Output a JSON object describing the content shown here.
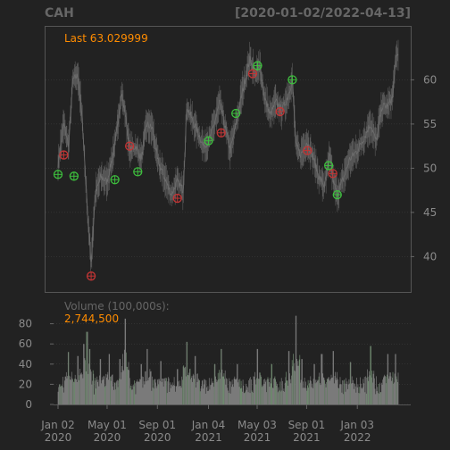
{
  "header": {
    "symbol": "CAH",
    "date_range": "[2020-01-02/2022-04-13]"
  },
  "colors": {
    "background": "#222222",
    "grid": "#444444",
    "text_dim": "#666666",
    "axis_text": "#8a8a8a",
    "price": "#777777",
    "last_label": "#FF8C00",
    "volume_label": "#666666",
    "volume_value": "#FF8C00",
    "marker_buy": "#3DBE3D",
    "marker_sell": "#C23535"
  },
  "chart_data": [
    {
      "type": "line",
      "title": "CAH",
      "subtitle": "[2020-01-02/2022-04-13]",
      "last_label": "Last 63.029999",
      "ylim": [
        36,
        66
      ],
      "y_ticks": [
        40,
        45,
        50,
        55,
        60
      ],
      "x_ticks": [
        {
          "date": "2020-01-02",
          "line1": "Jan 02",
          "line2": "2020"
        },
        {
          "date": "2020-05-01",
          "line1": "May 01",
          "line2": "2020"
        },
        {
          "date": "2020-09-01",
          "line1": "Sep 01",
          "line2": "2020"
        },
        {
          "date": "2021-01-04",
          "line1": "Jan 04",
          "line2": "2021"
        },
        {
          "date": "2021-05-03",
          "line1": "May 03",
          "line2": "2021"
        },
        {
          "date": "2021-09-01",
          "line1": "Sep 01",
          "line2": "2021"
        },
        {
          "date": "2022-01-03",
          "line1": "Jan 03",
          "line2": "2022"
        }
      ],
      "price_anchors": [
        [
          "2020-01-02",
          50.5
        ],
        [
          "2020-01-16",
          55.0
        ],
        [
          "2020-01-28",
          52.5
        ],
        [
          "2020-02-07",
          60.0
        ],
        [
          "2020-02-20",
          60.5
        ],
        [
          "2020-03-02",
          55.0
        ],
        [
          "2020-03-16",
          43.5
        ],
        [
          "2020-03-23",
          39.5
        ],
        [
          "2020-04-02",
          47.0
        ],
        [
          "2020-04-15",
          49.0
        ],
        [
          "2020-05-01",
          48.5
        ],
        [
          "2020-05-20",
          52.5
        ],
        [
          "2020-06-05",
          58.5
        ],
        [
          "2020-06-15",
          56.0
        ],
        [
          "2020-06-25",
          52.0
        ],
        [
          "2020-07-10",
          52.5
        ],
        [
          "2020-07-24",
          51.0
        ],
        [
          "2020-08-05",
          55.0
        ],
        [
          "2020-08-20",
          54.5
        ],
        [
          "2020-09-01",
          51.0
        ],
        [
          "2020-09-18",
          49.0
        ],
        [
          "2020-10-05",
          47.0
        ],
        [
          "2020-10-20",
          48.5
        ],
        [
          "2020-11-03",
          47.5
        ],
        [
          "2020-11-12",
          57.0
        ],
        [
          "2020-11-25",
          55.5
        ],
        [
          "2020-12-10",
          54.0
        ],
        [
          "2020-12-22",
          52.5
        ],
        [
          "2021-01-04",
          53.0
        ],
        [
          "2021-01-15",
          54.5
        ],
        [
          "2021-02-01",
          57.5
        ],
        [
          "2021-02-12",
          55.0
        ],
        [
          "2021-02-26",
          52.0
        ],
        [
          "2021-03-10",
          54.5
        ],
        [
          "2021-03-25",
          58.0
        ],
        [
          "2021-04-08",
          61.0
        ],
        [
          "2021-04-16",
          62.5
        ],
        [
          "2021-04-28",
          60.5
        ],
        [
          "2021-05-10",
          61.5
        ],
        [
          "2021-05-21",
          58.0
        ],
        [
          "2021-06-04",
          56.0
        ],
        [
          "2021-06-18",
          57.5
        ],
        [
          "2021-07-02",
          56.5
        ],
        [
          "2021-07-16",
          58.0
        ],
        [
          "2021-07-28",
          60.0
        ],
        [
          "2021-08-06",
          52.5
        ],
        [
          "2021-08-18",
          51.5
        ],
        [
          "2021-09-01",
          53.0
        ],
        [
          "2021-09-15",
          51.5
        ],
        [
          "2021-10-01",
          49.0
        ],
        [
          "2021-10-15",
          48.0
        ],
        [
          "2021-10-28",
          51.5
        ],
        [
          "2021-11-05",
          48.5
        ],
        [
          "2021-11-15",
          47.0
        ],
        [
          "2021-12-01",
          49.0
        ],
        [
          "2021-12-15",
          51.0
        ],
        [
          "2022-01-03",
          52.0
        ],
        [
          "2022-01-20",
          53.5
        ],
        [
          "2022-02-04",
          55.0
        ],
        [
          "2022-02-18",
          53.0
        ],
        [
          "2022-03-04",
          57.0
        ],
        [
          "2022-03-18",
          57.0
        ],
        [
          "2022-03-30",
          58.0
        ],
        [
          "2022-04-06",
          62.0
        ],
        [
          "2022-04-13",
          63.03
        ]
      ],
      "markers": [
        {
          "date": "2020-01-02",
          "value": 49.3,
          "kind": "buy"
        },
        {
          "date": "2020-01-16",
          "value": 51.5,
          "kind": "sell"
        },
        {
          "date": "2020-02-10",
          "value": 49.1,
          "kind": "buy"
        },
        {
          "date": "2020-03-23",
          "value": 37.8,
          "kind": "sell"
        },
        {
          "date": "2020-05-20",
          "value": 48.7,
          "kind": "buy"
        },
        {
          "date": "2020-06-25",
          "value": 52.5,
          "kind": "sell"
        },
        {
          "date": "2020-07-15",
          "value": 49.6,
          "kind": "buy"
        },
        {
          "date": "2020-10-20",
          "value": 46.6,
          "kind": "sell"
        },
        {
          "date": "2021-01-04",
          "value": 53.1,
          "kind": "buy"
        },
        {
          "date": "2021-02-04",
          "value": 54.0,
          "kind": "sell"
        },
        {
          "date": "2021-03-12",
          "value": 56.2,
          "kind": "buy"
        },
        {
          "date": "2021-04-22",
          "value": 60.7,
          "kind": "sell"
        },
        {
          "date": "2021-05-04",
          "value": 61.6,
          "kind": "buy"
        },
        {
          "date": "2021-06-28",
          "value": 56.4,
          "kind": "sell"
        },
        {
          "date": "2021-07-28",
          "value": 60.0,
          "kind": "buy"
        },
        {
          "date": "2021-09-03",
          "value": 52.0,
          "kind": "sell"
        },
        {
          "date": "2021-10-25",
          "value": 50.3,
          "kind": "buy"
        },
        {
          "date": "2021-11-04",
          "value": 49.4,
          "kind": "sell"
        },
        {
          "date": "2021-11-15",
          "value": 47.0,
          "kind": "buy"
        }
      ]
    },
    {
      "type": "bar",
      "title": "Volume (100,000s):",
      "last_value": "2,744,500",
      "ylim": [
        0,
        100
      ],
      "y_ticks": [
        0,
        20,
        40,
        60,
        80
      ],
      "baseline": 20,
      "spikes": [
        [
          "2020-01-28",
          52
        ],
        [
          "2020-02-20",
          48
        ],
        [
          "2020-03-05",
          60
        ],
        [
          "2020-03-13",
          72
        ],
        [
          "2020-03-19",
          55
        ],
        [
          "2020-04-15",
          45
        ],
        [
          "2020-05-06",
          50
        ],
        [
          "2020-06-01",
          45
        ],
        [
          "2020-06-15",
          85
        ],
        [
          "2020-07-24",
          40
        ],
        [
          "2020-08-07",
          55
        ],
        [
          "2020-09-10",
          43
        ],
        [
          "2020-10-20",
          35
        ],
        [
          "2020-11-12",
          62
        ],
        [
          "2020-12-03",
          48
        ],
        [
          "2021-01-20",
          40
        ],
        [
          "2021-02-05",
          55
        ],
        [
          "2021-03-15",
          40
        ],
        [
          "2021-05-04",
          55
        ],
        [
          "2021-06-07",
          40
        ],
        [
          "2021-07-20",
          53
        ],
        [
          "2021-08-06",
          88
        ],
        [
          "2021-08-20",
          45
        ],
        [
          "2021-09-20",
          40
        ],
        [
          "2021-10-08",
          50
        ],
        [
          "2021-11-05",
          53
        ],
        [
          "2021-12-17",
          42
        ],
        [
          "2022-02-04",
          58
        ],
        [
          "2022-03-18",
          50
        ],
        [
          "2022-04-06",
          50
        ]
      ]
    }
  ]
}
